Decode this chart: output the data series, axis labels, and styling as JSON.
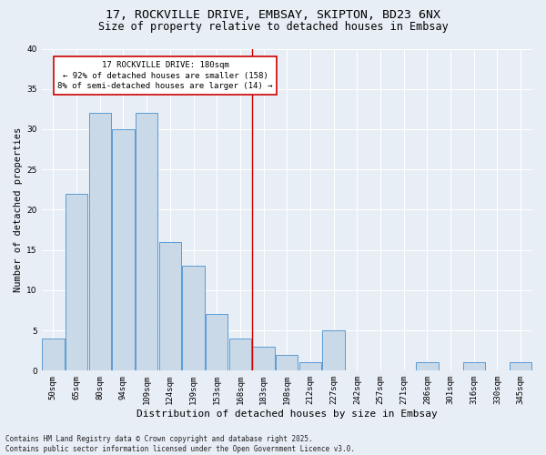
{
  "title": "17, ROCKVILLE DRIVE, EMBSAY, SKIPTON, BD23 6NX",
  "subtitle": "Size of property relative to detached houses in Embsay",
  "xlabel": "Distribution of detached houses by size in Embsay",
  "ylabel": "Number of detached properties",
  "bar_color": "#c9d9e8",
  "bar_edge_color": "#5b9bd5",
  "background_color": "#e8eef5",
  "plot_bg_color": "#e8eef5",
  "categories": [
    "50sqm",
    "65sqm",
    "80sqm",
    "94sqm",
    "109sqm",
    "124sqm",
    "139sqm",
    "153sqm",
    "168sqm",
    "183sqm",
    "198sqm",
    "212sqm",
    "227sqm",
    "242sqm",
    "257sqm",
    "271sqm",
    "286sqm",
    "301sqm",
    "316sqm",
    "330sqm",
    "345sqm"
  ],
  "values": [
    4,
    22,
    32,
    30,
    32,
    16,
    13,
    7,
    4,
    3,
    2,
    1,
    5,
    0,
    0,
    0,
    1,
    0,
    1,
    0,
    1
  ],
  "vline_x": 8.5,
  "vline_color": "#cc0000",
  "annotation_border_color": "#cc0000",
  "annotation_text": "17 ROCKVILLE DRIVE: 180sqm\n← 92% of detached houses are smaller (158)\n8% of semi-detached houses are larger (14) →",
  "ylim": [
    0,
    40
  ],
  "yticks": [
    0,
    5,
    10,
    15,
    20,
    25,
    30,
    35,
    40
  ],
  "grid_color": "#ffffff",
  "footer_text": "Contains HM Land Registry data © Crown copyright and database right 2025.\nContains public sector information licensed under the Open Government Licence v3.0.",
  "title_fontsize": 9.5,
  "subtitle_fontsize": 8.5,
  "xlabel_fontsize": 8,
  "ylabel_fontsize": 7.5,
  "tick_fontsize": 6.5,
  "annotation_fontsize": 6.5,
  "footer_fontsize": 5.5
}
